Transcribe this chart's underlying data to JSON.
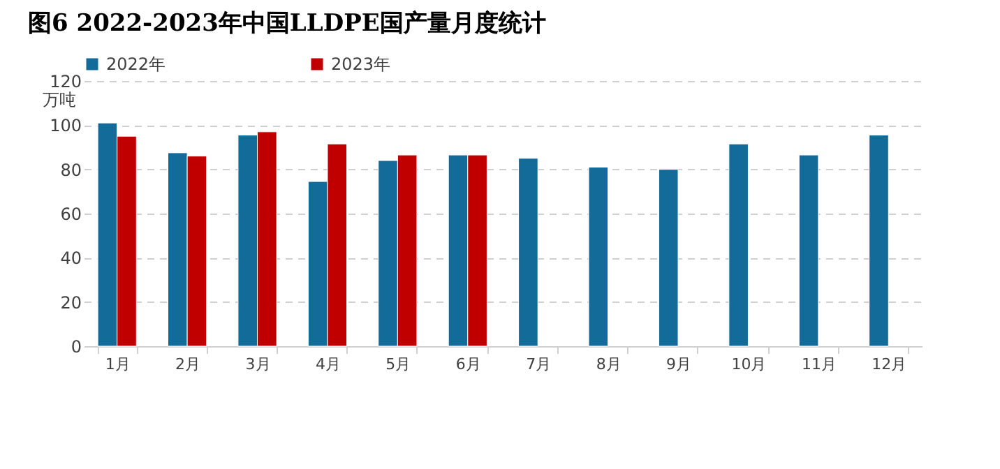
{
  "chart_data": {
    "type": "bar",
    "title": "图6 2022-2023年中国LLDPE国产量月度统计",
    "ylabel": "万吨",
    "categories": [
      "1月",
      "2月",
      "3月",
      "4月",
      "5月",
      "6月",
      "7月",
      "8月",
      "9月",
      "10月",
      "11月",
      "12月"
    ],
    "series": [
      {
        "name": "2022年",
        "color": "#136b9a",
        "values": [
          101,
          87.5,
          95.5,
          74.5,
          84,
          86.5,
          85,
          81,
          80,
          91.5,
          86.5,
          95.5
        ]
      },
      {
        "name": "2023年",
        "color": "#c00000",
        "values": [
          95,
          86,
          97,
          91.5,
          86.5,
          86.5,
          null,
          null,
          null,
          null,
          null,
          null
        ]
      }
    ],
    "ylim": [
      0,
      120
    ],
    "yticks": [
      0,
      20,
      40,
      60,
      80,
      100,
      120
    ],
    "grid": "y",
    "legend": "top"
  }
}
